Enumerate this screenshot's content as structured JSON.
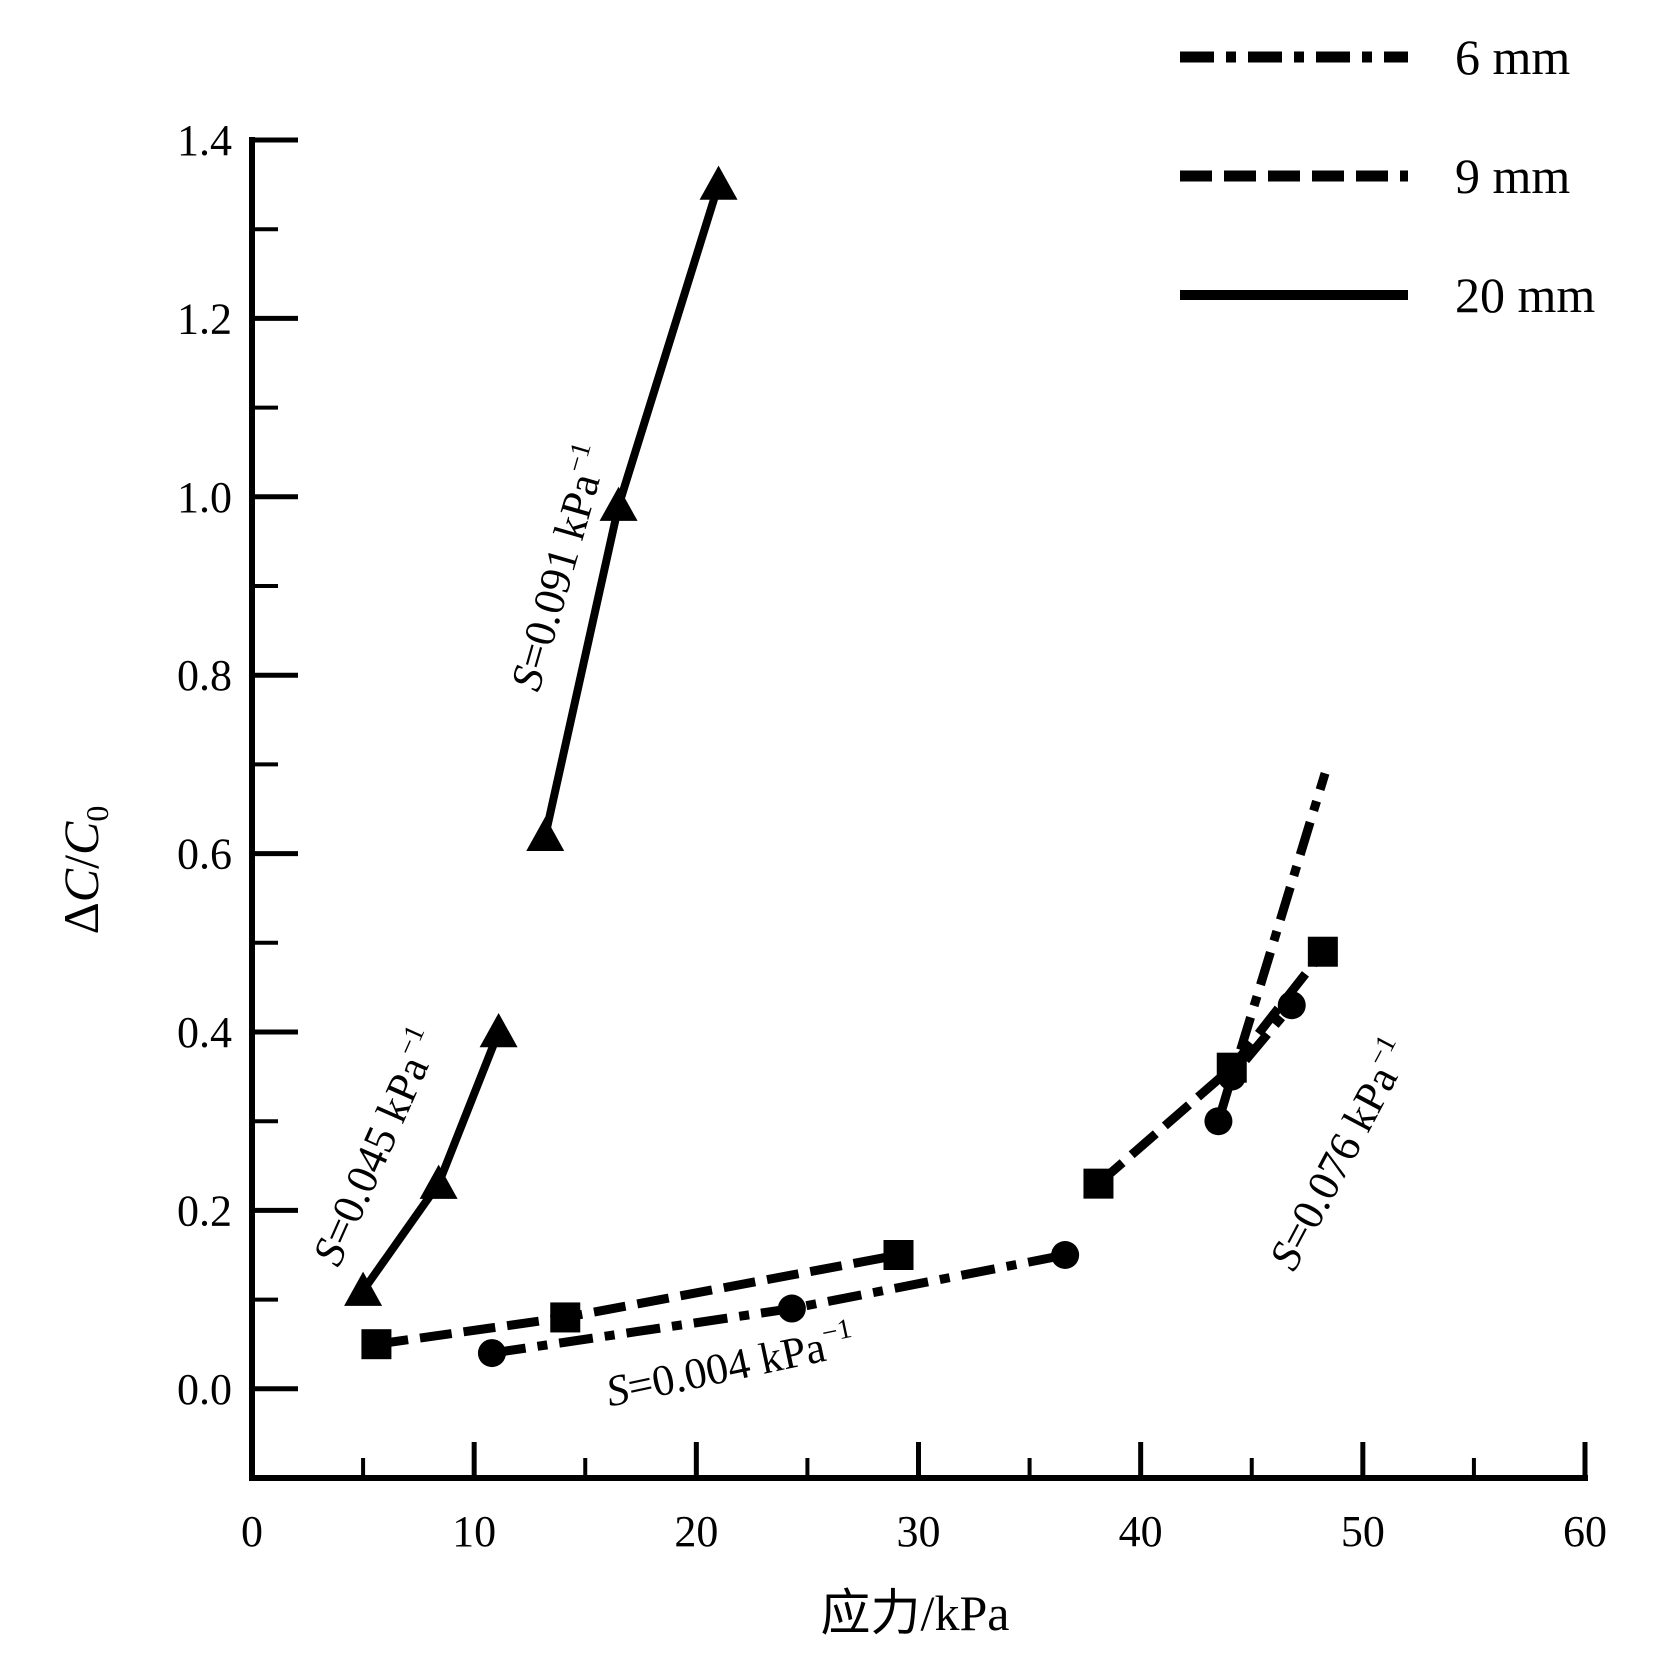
{
  "chart_data": {
    "type": "line",
    "xlabel": "应力/kPa",
    "ylabel": "ΔC/C0",
    "ylabel_parts": {
      "delta": "Δ",
      "c": "C",
      "slash": "/",
      "c0": "C",
      "sub": "0"
    },
    "xlim": [
      0,
      60
    ],
    "ylim": [
      -0.1,
      1.4
    ],
    "xticks": [
      0,
      10,
      20,
      30,
      40,
      50,
      60
    ],
    "xtick_labels": [
      "0",
      "10",
      "20",
      "30",
      "40",
      "50",
      "60"
    ],
    "yticks": [
      0.0,
      0.2,
      0.4,
      0.6,
      0.8,
      1.0,
      1.2,
      1.4
    ],
    "ytick_labels": [
      "0.0",
      "0.2",
      "0.4",
      "0.6",
      "0.8",
      "1.0",
      "1.2",
      "1.4"
    ],
    "legend_position": "top-right",
    "series": [
      {
        "name": "6 mm",
        "line_style": "dash-dot",
        "marker": "circle",
        "segments": [
          {
            "x": [
              10.8,
              24.3,
              36.6
            ],
            "y": [
              0.04,
              0.09,
              0.15
            ]
          },
          {
            "x": [
              43.5,
              44.1,
              46.8
            ],
            "y": [
              0.3,
              0.35,
              0.43
            ]
          }
        ],
        "extra_line": {
          "x": [
            44.5,
            48.3
          ],
          "y": [
            0.38,
            0.69
          ]
        }
      },
      {
        "name": "9 mm",
        "line_style": "dashed",
        "marker": "square",
        "segments": [
          {
            "x": [
              5.6,
              14.1,
              29.1
            ],
            "y": [
              0.05,
              0.08,
              0.15
            ]
          },
          {
            "x": [
              38.1,
              44.1,
              48.2
            ],
            "y": [
              0.23,
              0.36,
              0.49
            ]
          }
        ]
      },
      {
        "name": "20 mm",
        "line_style": "solid",
        "marker": "triangle",
        "segments": [
          {
            "x": [
              5.0,
              8.4,
              11.1
            ],
            "y": [
              0.11,
              0.23,
              0.4
            ]
          },
          {
            "x": [
              13.2,
              16.5,
              21.0
            ],
            "y": [
              0.62,
              0.99,
              1.35
            ]
          }
        ]
      }
    ],
    "annotations": [
      {
        "prefix": "S",
        "text": "=0.091 kPa",
        "sup": "−1",
        "x": 12.9,
        "y": 0.78,
        "angle": -74
      },
      {
        "prefix": "S",
        "text": "=0.045 kPa",
        "sup": "−1",
        "x": 3.9,
        "y": 0.135,
        "angle": -66
      },
      {
        "prefix": "S",
        "text": "=0.076 kPa",
        "sup": "−1",
        "x": 46.9,
        "y": 0.13,
        "angle": -62
      },
      {
        "prefix": "S",
        "text": "=0.004 kPa",
        "sup": "−1",
        "x": 16.1,
        "y": -0.02,
        "angle": -12
      }
    ]
  }
}
